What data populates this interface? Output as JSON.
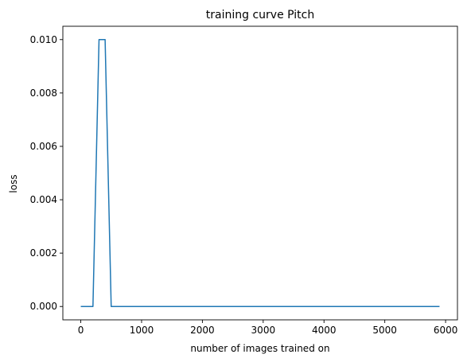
{
  "chart_data": {
    "type": "line",
    "title": "training curve Pitch",
    "xlabel": "number of images trained on",
    "ylabel": "loss",
    "xlim": [
      -295,
      6195
    ],
    "ylim": [
      -0.0005,
      0.0105
    ],
    "xticks": [
      0,
      1000,
      2000,
      3000,
      4000,
      5000,
      6000
    ],
    "xtick_labels": [
      "0",
      "1000",
      "2000",
      "3000",
      "4000",
      "5000",
      "6000"
    ],
    "yticks": [
      0.0,
      0.002,
      0.004,
      0.006,
      0.008,
      0.01
    ],
    "ytick_labels": [
      "0.000",
      "0.002",
      "0.004",
      "0.006",
      "0.008",
      "0.010"
    ],
    "grid": false,
    "series": [
      {
        "color": "#1f77b4",
        "x": [
          0,
          100,
          200,
          300,
          400,
          500,
          600,
          700,
          800,
          900,
          1000,
          1500,
          2000,
          2500,
          3000,
          3500,
          4000,
          4500,
          5000,
          5500,
          5900
        ],
        "y": [
          0.0,
          0.0,
          0.0,
          0.01,
          0.01,
          0.0,
          0.0,
          0.0,
          0.0,
          0.0,
          0.0,
          0.0,
          0.0,
          0.0,
          0.0,
          0.0,
          0.0,
          0.0,
          0.0,
          0.0,
          0.0
        ]
      }
    ]
  }
}
